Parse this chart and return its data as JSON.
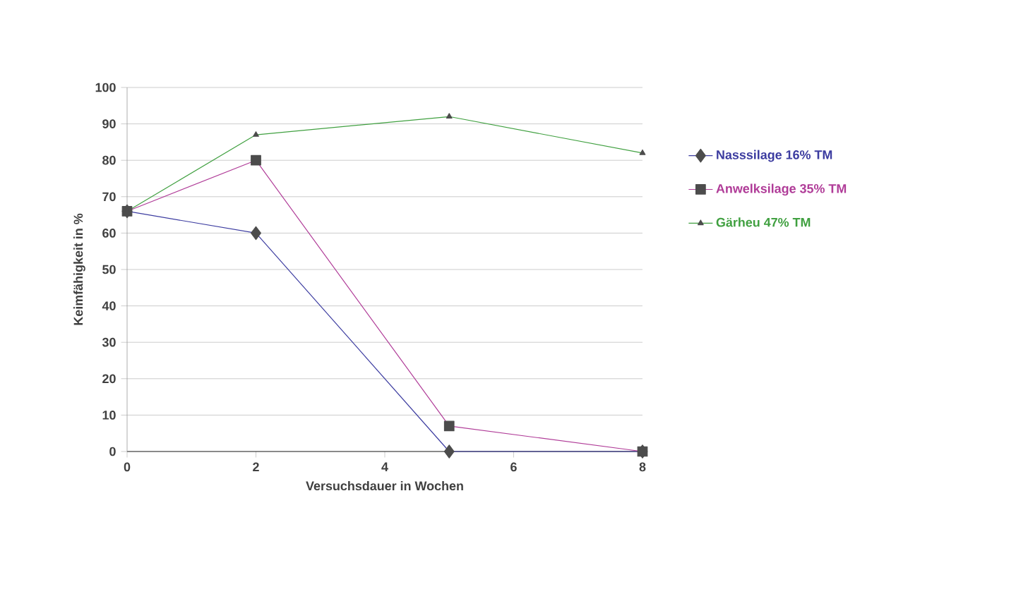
{
  "chart_data": {
    "type": "line",
    "xlabel": "Versuchsdauer in Wochen",
    "ylabel": "Keimfähigkeit in %",
    "x": [
      0,
      2,
      5,
      8
    ],
    "series": [
      {
        "name": "Nasssilage 16% TM",
        "color": "#3c3ca0",
        "values": [
          66,
          60,
          0,
          0
        ],
        "marker": "diamond"
      },
      {
        "name": "Anwelksilage 35% TM",
        "color": "#b03c98",
        "values": [
          66,
          80,
          7,
          0
        ],
        "marker": "square"
      },
      {
        "name": "Gärheu 47% TM",
        "color": "#40a040",
        "values": [
          66,
          87,
          92,
          82
        ],
        "marker": "triangle"
      }
    ],
    "xlim": [
      0,
      8
    ],
    "xticks": [
      0,
      2,
      4,
      6,
      8
    ],
    "ylim": [
      0,
      100
    ],
    "yticks": [
      0,
      10,
      20,
      30,
      40,
      50,
      60,
      70,
      80,
      90,
      100
    ],
    "grid": "y",
    "legend": "right",
    "line_style": "solid"
  }
}
